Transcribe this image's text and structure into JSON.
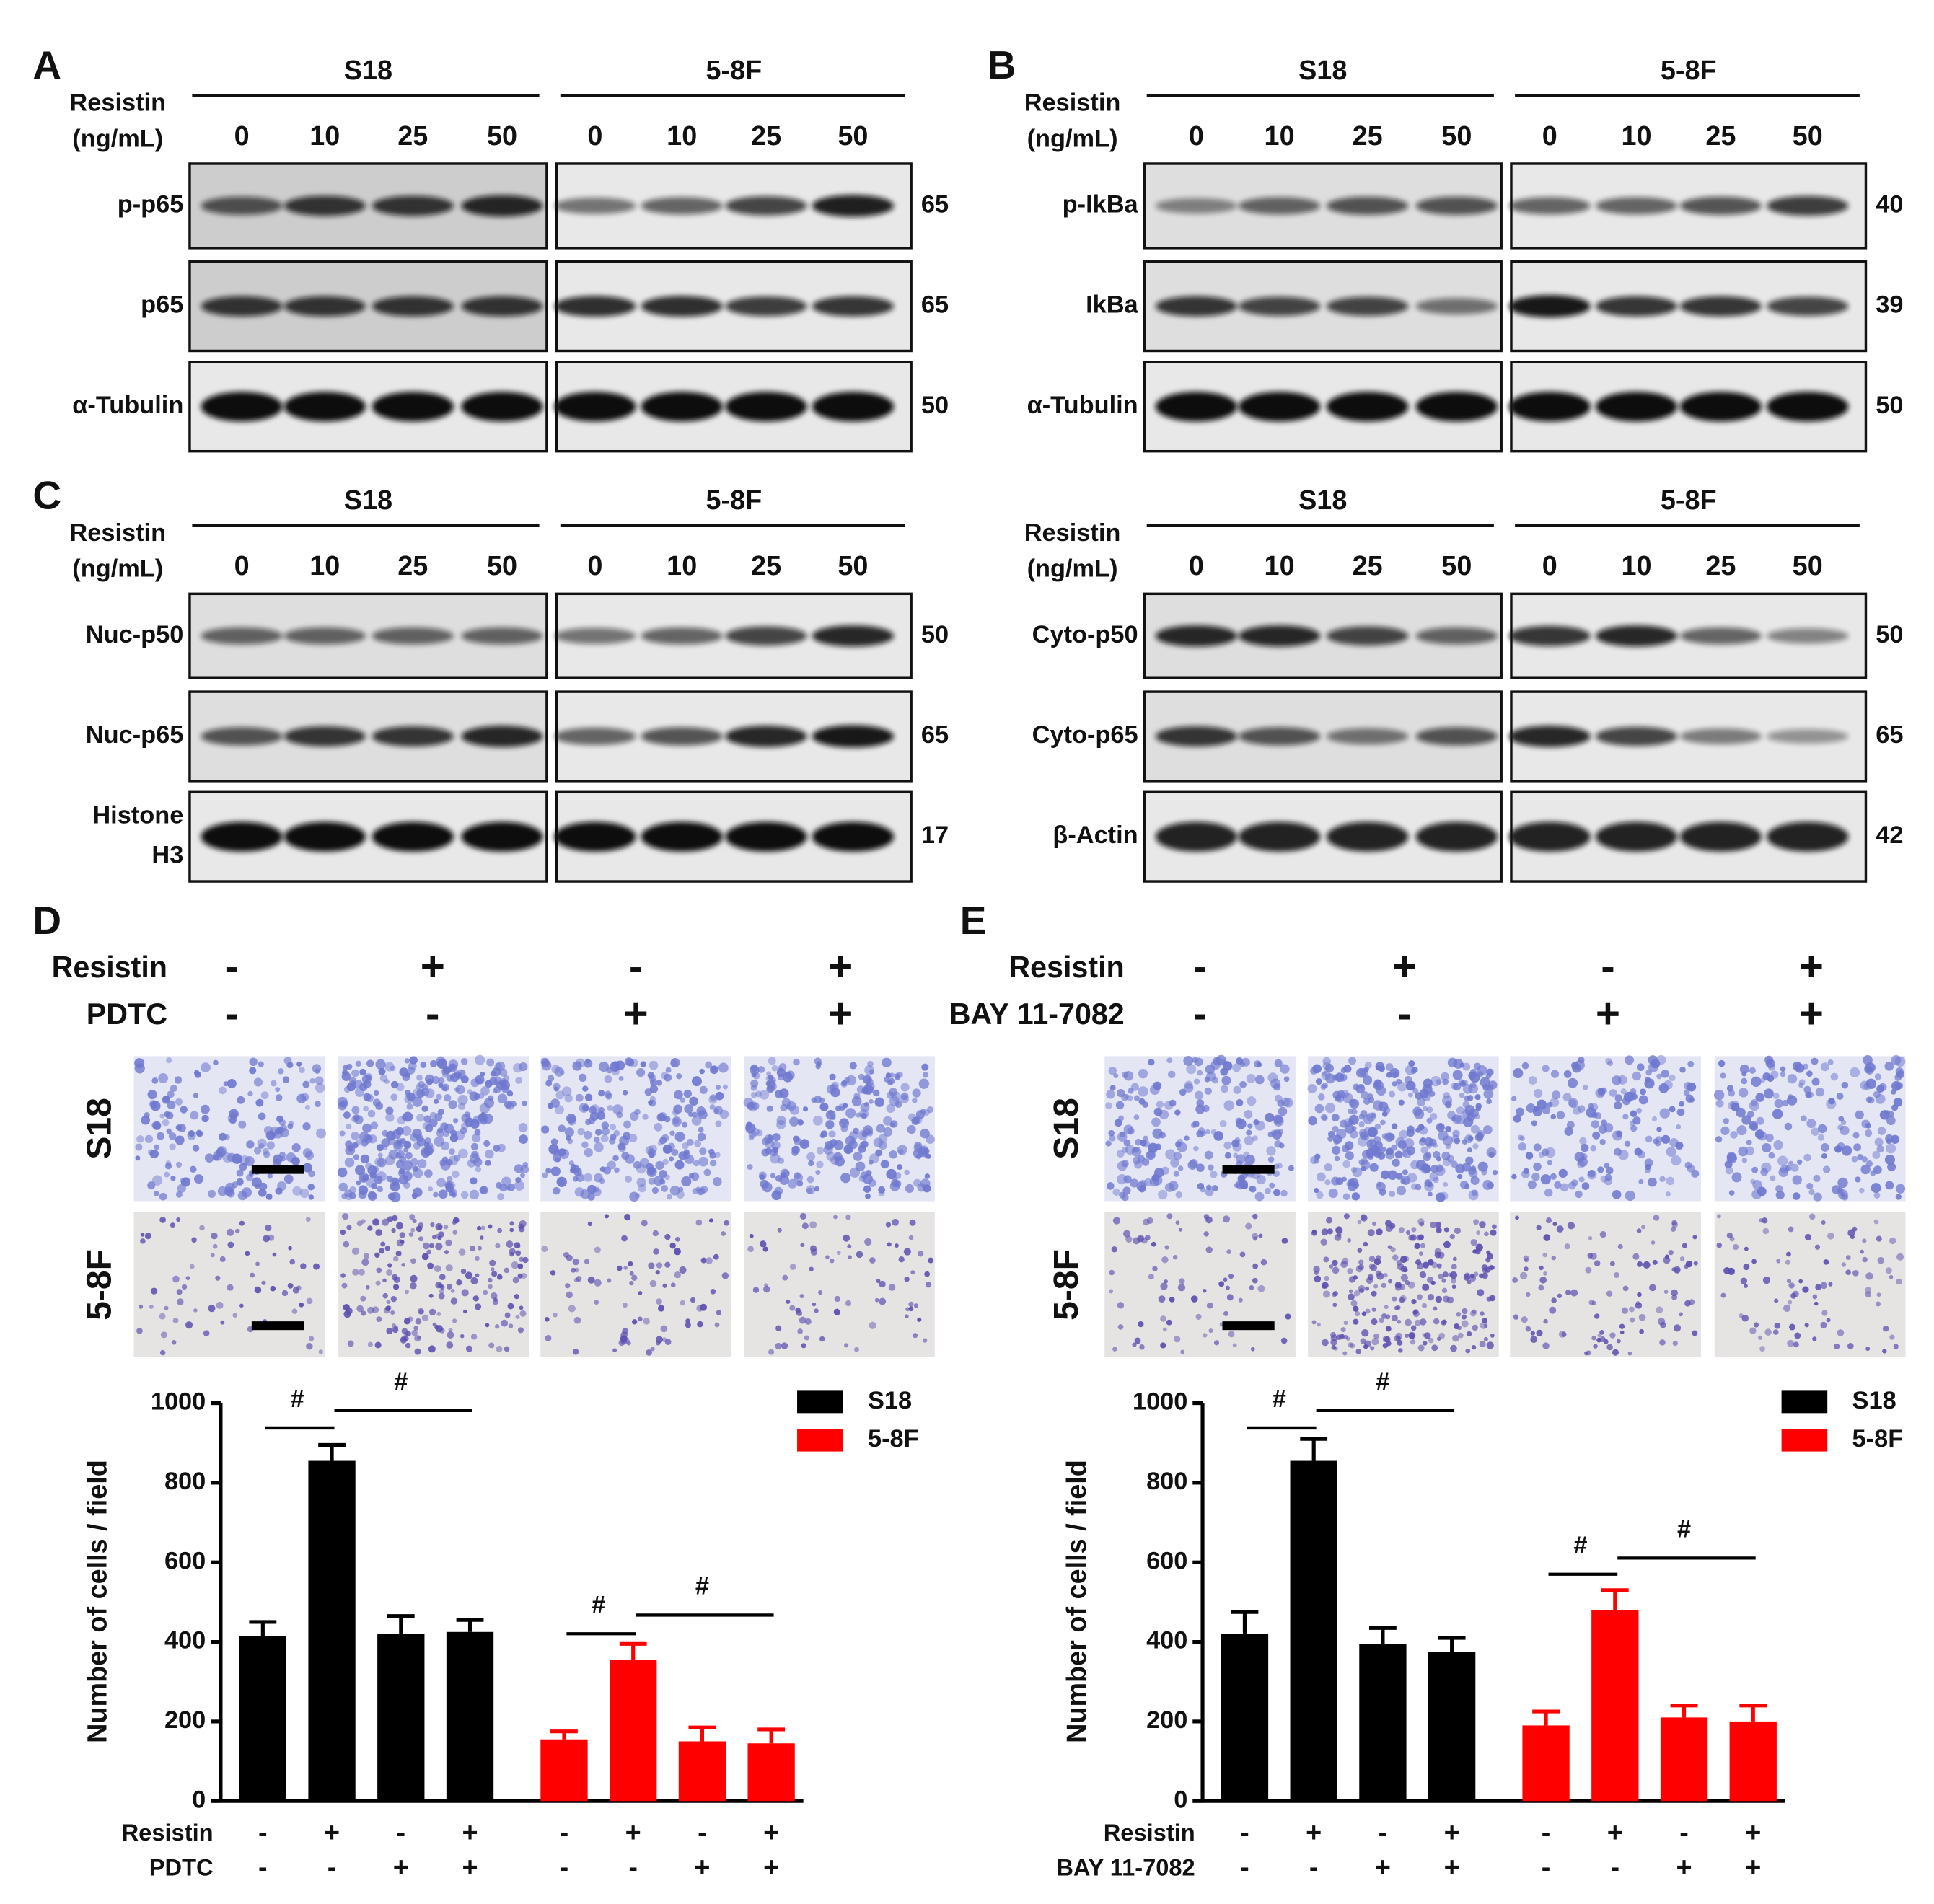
{
  "blots": [
    {
      "letter": "A",
      "groups": [
        "S18",
        "5-8F"
      ],
      "treatment": [
        "Resistin",
        "(ng/mL)"
      ],
      "doses": [
        0,
        10,
        25,
        50
      ],
      "rows": [
        {
          "label": [
            "p-p65"
          ],
          "mw": 65
        },
        {
          "label": [
            "p65"
          ],
          "mw": 65
        },
        {
          "label": [
            "α-Tubulin"
          ],
          "mw": 50
        }
      ]
    },
    {
      "letter": "B",
      "groups": [
        "S18",
        "5-8F"
      ],
      "treatment": [
        "Resistin",
        "(ng/mL)"
      ],
      "doses": [
        0,
        10,
        25,
        50
      ],
      "rows": [
        {
          "label": [
            "p-IkBa"
          ],
          "mw": 40
        },
        {
          "label": [
            "IkBa"
          ],
          "mw": 39
        },
        {
          "label": [
            "α-Tubulin"
          ],
          "mw": 50
        }
      ]
    },
    {
      "letter": "C",
      "groups": [
        "S18",
        "5-8F"
      ],
      "treatment": [
        "Resistin",
        "(ng/mL)"
      ],
      "doses": [
        0,
        10,
        25,
        50
      ],
      "rows": [
        {
          "label": [
            "Nuc-p50"
          ],
          "mw": 50
        },
        {
          "label": [
            "Nuc-p65"
          ],
          "mw": 65
        },
        {
          "label": [
            "Histone",
            "H3"
          ],
          "mw": 17
        }
      ]
    },
    {
      "groups": [
        "S18",
        "5-8F"
      ],
      "treatment": [
        "Resistin",
        "(ng/mL)"
      ],
      "doses": [
        0,
        10,
        25,
        50
      ],
      "rows": [
        {
          "label": [
            "Cyto-p50"
          ],
          "mw": 50
        },
        {
          "label": [
            "Cyto-p65"
          ],
          "mw": 65
        },
        {
          "label": [
            "β-Actin"
          ],
          "mw": 42
        }
      ]
    }
  ],
  "migration": [
    {
      "letter": "D",
      "conditions": [
        {
          "label": "Resistin",
          "signs": [
            "-",
            "+",
            "-",
            "+"
          ]
        },
        {
          "label": "PDTC",
          "signs": [
            "-",
            "-",
            "+",
            "+"
          ]
        }
      ],
      "cell_lines": [
        "S18",
        "5-8F"
      ]
    },
    {
      "letter": "E",
      "conditions": [
        {
          "label": "Resistin",
          "signs": [
            "-",
            "+",
            "-",
            "+"
          ]
        },
        {
          "label": "BAY 11-7082",
          "signs": [
            "-",
            "-",
            "+",
            "+"
          ]
        }
      ],
      "cell_lines": [
        "S18",
        "5-8F"
      ]
    }
  ],
  "chart_data": [
    {
      "type": "bar",
      "y_label": "Number of cells / field",
      "ylim": [
        0,
        1000
      ],
      "yticks": [
        0,
        200,
        400,
        600,
        800,
        1000
      ],
      "series": [
        {
          "name": "S18",
          "color": "#000000",
          "values": [
            415,
            855,
            420,
            425
          ],
          "errors": [
            35,
            40,
            45,
            30
          ]
        },
        {
          "name": "5-8F",
          "color": "#ff0000",
          "values": [
            155,
            355,
            150,
            145
          ],
          "errors": [
            20,
            40,
            35,
            35
          ]
        }
      ],
      "conditions": [
        {
          "label": "Resistin",
          "signs": [
            "-",
            "+",
            "-",
            "+"
          ]
        },
        {
          "label": "PDTC",
          "signs": [
            "-",
            "-",
            "+",
            "+"
          ]
        }
      ],
      "annotations": [
        "#",
        "#",
        "#",
        "#"
      ]
    },
    {
      "type": "bar",
      "y_label": "Number of cells / field",
      "ylim": [
        0,
        1000
      ],
      "yticks": [
        0,
        200,
        400,
        600,
        800,
        1000
      ],
      "series": [
        {
          "name": "S18",
          "color": "#000000",
          "values": [
            420,
            855,
            395,
            375
          ],
          "errors": [
            55,
            55,
            40,
            35
          ]
        },
        {
          "name": "5-8F",
          "color": "#ff0000",
          "values": [
            190,
            480,
            210,
            200
          ],
          "errors": [
            35,
            50,
            30,
            40
          ]
        }
      ],
      "conditions": [
        {
          "label": "Resistin",
          "signs": [
            "-",
            "+",
            "-",
            "+"
          ]
        },
        {
          "label": "BAY 11-7082",
          "signs": [
            "-",
            "-",
            "+",
            "+"
          ]
        }
      ],
      "annotations": [
        "#",
        "#",
        "#",
        "#"
      ]
    }
  ]
}
